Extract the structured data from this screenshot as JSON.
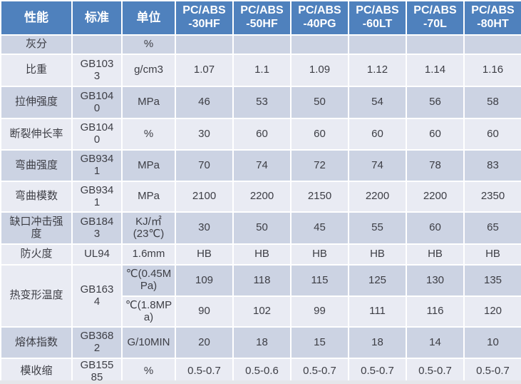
{
  "table": {
    "columns": {
      "property_label": "性能",
      "standard_label": "标准",
      "unit_label": "单位"
    },
    "grades": [
      {
        "line1": "PC/ABS",
        "line2": "-30HF"
      },
      {
        "line1": "PC/ABS",
        "line2": "-50HF"
      },
      {
        "line1": "PC/ABS",
        "line2": "-40PG"
      },
      {
        "line1": "PC/ABS",
        "line2": "-60LT"
      },
      {
        "line1": "PC/ABS",
        "line2": "-70L"
      },
      {
        "line1": "PC/ABS",
        "line2": "-80HT"
      }
    ],
    "rows": [
      {
        "property": "灰分",
        "standard": "",
        "unit": "%",
        "values": [
          "",
          "",
          "",
          "",
          "",
          ""
        ],
        "band": "dark"
      },
      {
        "property": "比重",
        "standard": "GB1033",
        "unit": "g/cm3",
        "values": [
          "1.07",
          "1.1",
          "1.09",
          "1.12",
          "1.14",
          "1.16"
        ],
        "band": "light"
      },
      {
        "property": "拉伸强度",
        "standard": "GB1040",
        "unit": "MPa",
        "values": [
          "46",
          "53",
          "50",
          "54",
          "56",
          "58"
        ],
        "band": "dark"
      },
      {
        "property": "断裂伸长率",
        "standard": "GB1040",
        "unit": "%",
        "values": [
          "30",
          "60",
          "60",
          "60",
          "60",
          "60"
        ],
        "band": "light"
      },
      {
        "property": "弯曲强度",
        "standard": "GB9341",
        "unit": "MPa",
        "values": [
          "70",
          "74",
          "72",
          "74",
          "78",
          "83"
        ],
        "band": "dark"
      },
      {
        "property": "弯曲模数",
        "standard": "GB9341",
        "unit": "MPa",
        "values": [
          "2100",
          "2200",
          "2150",
          "2200",
          "2200",
          "2350"
        ],
        "band": "light"
      },
      {
        "property": "缺口冲击强度",
        "standard": "GB1843",
        "unit": "KJ/㎡ (23℃)",
        "values": [
          "30",
          "50",
          "45",
          "55",
          "60",
          "65"
        ],
        "band": "dark"
      },
      {
        "property": "防火度",
        "standard": "UL94",
        "unit": "1.6mm",
        "values": [
          "HB",
          "HB",
          "HB",
          "HB",
          "HB",
          "HB"
        ],
        "band": "light"
      },
      {
        "property": "热变形温度",
        "standard": "GB1634",
        "property_rowspan": 2,
        "merged_band": "light",
        "unit": "℃(0.45MPa)",
        "values": [
          "109",
          "118",
          "115",
          "125",
          "130",
          "135"
        ],
        "band": "dark"
      },
      {
        "merged_into_above": true,
        "unit": "℃(1.8MPa)",
        "values": [
          "90",
          "102",
          "99",
          "111",
          "116",
          "120"
        ],
        "band": "light"
      },
      {
        "property": "熔体指数",
        "standard": "GB3682",
        "unit": "G/10MIN",
        "values": [
          "20",
          "18",
          "15",
          "18",
          "14",
          "10"
        ],
        "band": "dark"
      },
      {
        "property": "模收缩",
        "standard": "GB15585",
        "unit": "%",
        "values": [
          "0.5-0.7",
          "0.5-0.6",
          "0.5-0.7",
          "0.5-0.7",
          "0.5-0.7",
          "0.5-0.7"
        ],
        "band": "light"
      }
    ]
  },
  "colors": {
    "header_bg": "#4f81bd",
    "header_text": "#ffffff",
    "band_dark": "#ccd3e3",
    "band_light": "#e9ebf3",
    "grid": "#ffffff",
    "body_text": "#3d3e45"
  },
  "chart_data": {
    "type": "table",
    "title": "PC/ABS 材料性能表",
    "columns": [
      "性能",
      "标准",
      "单位",
      "PC/ABS-30HF",
      "PC/ABS-50HF",
      "PC/ABS-40PG",
      "PC/ABS-60LT",
      "PC/ABS-70L",
      "PC/ABS-80HT"
    ],
    "rows": [
      [
        "灰分",
        "",
        "%",
        "",
        "",
        "",
        "",
        "",
        ""
      ],
      [
        "比重",
        "GB1033",
        "g/cm3",
        "1.07",
        "1.1",
        "1.09",
        "1.12",
        "1.14",
        "1.16"
      ],
      [
        "拉伸强度",
        "GB1040",
        "MPa",
        "46",
        "53",
        "50",
        "54",
        "56",
        "58"
      ],
      [
        "断裂伸长率",
        "GB1040",
        "%",
        "30",
        "60",
        "60",
        "60",
        "60",
        "60"
      ],
      [
        "弯曲强度",
        "GB9341",
        "MPa",
        "70",
        "74",
        "72",
        "74",
        "78",
        "83"
      ],
      [
        "弯曲模数",
        "GB9341",
        "MPa",
        "2100",
        "2200",
        "2150",
        "2200",
        "2200",
        "2350"
      ],
      [
        "缺口冲击强度",
        "GB1843",
        "KJ/㎡ (23℃)",
        "30",
        "50",
        "45",
        "55",
        "60",
        "65"
      ],
      [
        "防火度",
        "UL94",
        "1.6mm",
        "HB",
        "HB",
        "HB",
        "HB",
        "HB",
        "HB"
      ],
      [
        "热变形温度",
        "GB1634",
        "℃(0.45MPa)",
        "109",
        "118",
        "115",
        "125",
        "130",
        "135"
      ],
      [
        "热变形温度",
        "GB1634",
        "℃(1.8MPa)",
        "90",
        "102",
        "99",
        "111",
        "116",
        "120"
      ],
      [
        "熔体指数",
        "GB3682",
        "G/10MIN",
        "20",
        "18",
        "15",
        "18",
        "14",
        "10"
      ],
      [
        "模收缩",
        "GB15585",
        "%",
        "0.5-0.7",
        "0.5-0.6",
        "0.5-0.7",
        "0.5-0.7",
        "0.5-0.7",
        "0.5-0.7"
      ]
    ]
  }
}
